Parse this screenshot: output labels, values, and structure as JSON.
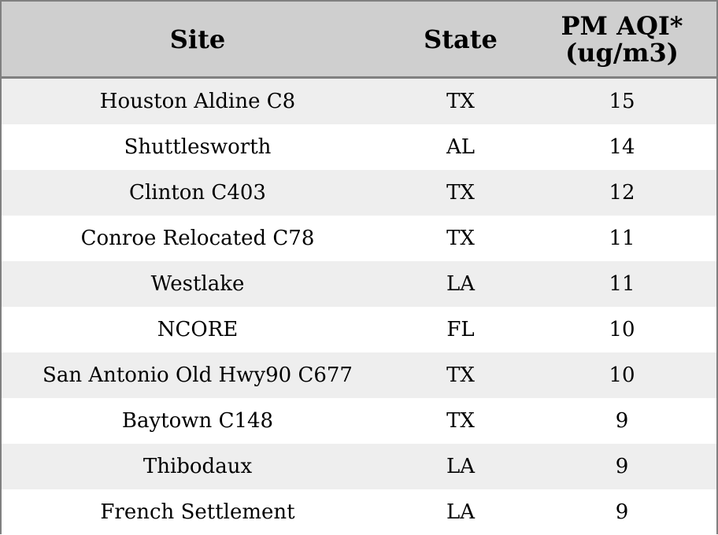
{
  "chart_data": {
    "type": "table",
    "columns": [
      "Site",
      "State",
      "PM AQI*\n(ug/m3)"
    ],
    "rows": [
      {
        "site": "Houston Aldine C8",
        "state": "TX",
        "pm": "15"
      },
      {
        "site": "Shuttlesworth",
        "state": "AL",
        "pm": "14"
      },
      {
        "site": "Clinton C403",
        "state": "TX",
        "pm": "12"
      },
      {
        "site": "Conroe Relocated C78",
        "state": "TX",
        "pm": "11"
      },
      {
        "site": "Westlake",
        "state": "LA",
        "pm": "11"
      },
      {
        "site": "NCORE",
        "state": "FL",
        "pm": "10"
      },
      {
        "site": "San Antonio Old Hwy90 C677",
        "state": "TX",
        "pm": "10"
      },
      {
        "site": "Baytown C148",
        "state": "TX",
        "pm": "9"
      },
      {
        "site": "Thibodaux",
        "state": "LA",
        "pm": "9"
      },
      {
        "site": "French Settlement",
        "state": "LA",
        "pm": "9"
      }
    ]
  },
  "colors": {
    "header_bg": "#cfcfcf",
    "row_alt_bg": "#eeeeee",
    "row_bg": "#ffffff",
    "border": "#808080"
  }
}
